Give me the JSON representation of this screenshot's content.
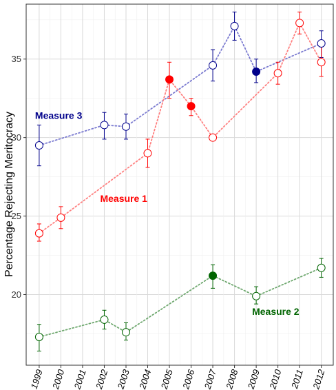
{
  "chart_data": {
    "type": "line",
    "ylabel": "Percentage Rejecting Meritocracy",
    "xlabel": "",
    "ylim": [
      15.5,
      38.5
    ],
    "y_ticks": [
      20,
      25,
      30,
      35
    ],
    "x_categories": [
      "1999",
      "2000",
      "2001",
      "2002",
      "2003",
      "2004",
      "2005",
      "2006",
      "2007",
      "2008",
      "2009",
      "2010",
      "2011",
      "2012"
    ],
    "grid": true,
    "series": [
      {
        "name": "Measure 3",
        "color": "#00008B",
        "line_color": "#7A7AD0",
        "points": [
          {
            "x": "1999",
            "y": 29.5,
            "lo": 28.2,
            "hi": 30.8,
            "filled": false
          },
          {
            "x": "2002",
            "y": 30.8,
            "lo": 29.9,
            "hi": 31.6,
            "filled": false
          },
          {
            "x": "2003",
            "y": 30.7,
            "lo": 29.9,
            "hi": 31.5,
            "filled": false
          },
          {
            "x": "2007",
            "y": 34.6,
            "lo": 33.6,
            "hi": 35.6,
            "filled": false
          },
          {
            "x": "2008",
            "y": 37.1,
            "lo": 36.2,
            "hi": 38.0,
            "filled": false
          },
          {
            "x": "2009",
            "y": 34.2,
            "lo": 33.5,
            "hi": 35.0,
            "filled": true
          },
          {
            "x": "2012",
            "y": 36.0,
            "lo": 35.1,
            "hi": 36.8,
            "filled": false
          }
        ]
      },
      {
        "name": "Measure 1",
        "color": "#FF0000",
        "line_color": "#FF8080",
        "points": [
          {
            "x": "1999",
            "y": 23.9,
            "lo": 23.4,
            "hi": 24.5,
            "filled": false
          },
          {
            "x": "2000",
            "y": 24.9,
            "lo": 24.2,
            "hi": 25.6,
            "filled": false
          },
          {
            "x": "2004",
            "y": 29.0,
            "lo": 28.1,
            "hi": 29.9,
            "filled": false
          },
          {
            "x": "2005",
            "y": 33.7,
            "lo": 32.5,
            "hi": 34.8,
            "filled": true
          },
          {
            "x": "2006",
            "y": 32.0,
            "lo": 31.4,
            "hi": 32.5,
            "filled": true
          },
          {
            "x": "2007",
            "y": 30.0,
            "lo": 30.0,
            "hi": 30.0,
            "filled": false
          },
          {
            "x": "2010",
            "y": 34.1,
            "lo": 33.4,
            "hi": 34.8,
            "filled": false
          },
          {
            "x": "2011",
            "y": 37.3,
            "lo": 36.6,
            "hi": 38.0,
            "filled": false
          },
          {
            "x": "2012",
            "y": 34.8,
            "lo": 33.9,
            "hi": 35.8,
            "filled": false
          }
        ]
      },
      {
        "name": "Measure 2",
        "color": "#006400",
        "line_color": "#6FA86F",
        "points": [
          {
            "x": "1999",
            "y": 17.3,
            "lo": 16.4,
            "hi": 18.1,
            "filled": false
          },
          {
            "x": "2002",
            "y": 18.4,
            "lo": 17.8,
            "hi": 19.0,
            "filled": false
          },
          {
            "x": "2003",
            "y": 17.6,
            "lo": 17.1,
            "hi": 18.2,
            "filled": false
          },
          {
            "x": "2007",
            "y": 21.2,
            "lo": 20.4,
            "hi": 21.9,
            "filled": true
          },
          {
            "x": "2009",
            "y": 19.9,
            "lo": 19.4,
            "hi": 20.5,
            "filled": false
          },
          {
            "x": "2012",
            "y": 21.7,
            "lo": 21.1,
            "hi": 22.3,
            "filled": false
          }
        ]
      }
    ],
    "annotations": [
      {
        "text": "Measure 3",
        "x": "1999",
        "y": 31.2,
        "color": "#00008B"
      },
      {
        "text": "Measure 1",
        "x": "2002",
        "y": 25.9,
        "color": "#FF0000"
      },
      {
        "text": "Measure 2",
        "x": "2009",
        "y": 18.7,
        "color": "#006400"
      }
    ]
  }
}
